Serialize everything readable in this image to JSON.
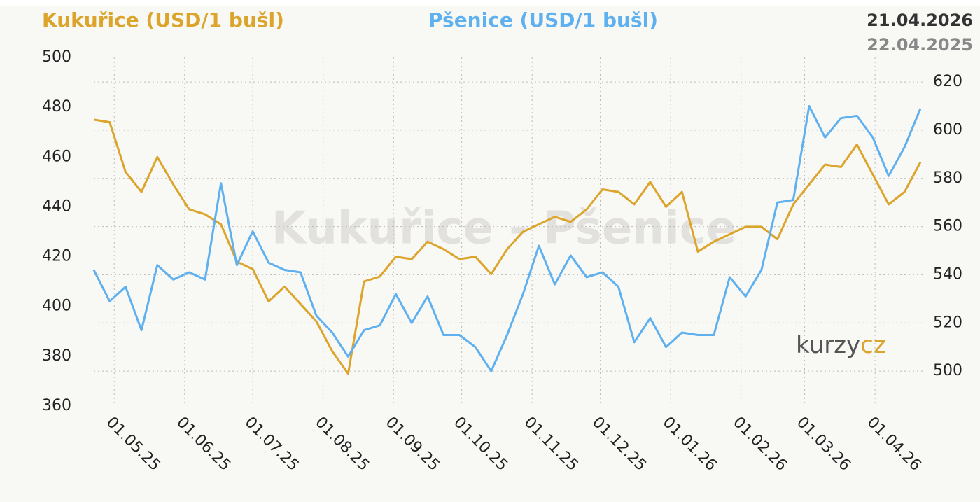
{
  "chart_data": {
    "type": "line",
    "date_labels": [
      "21.04.2026",
      "22.04.2025"
    ],
    "watermark": "Kukuřice - Pšenice",
    "logo": [
      "kurzy",
      "cz"
    ],
    "x": [
      "22.04.25",
      "29.04.25",
      "06.05.25",
      "13.05.25",
      "20.05.25",
      "27.05.25",
      "03.06.25",
      "10.06.25",
      "17.06.25",
      "24.06.25",
      "01.07.25",
      "08.07.25",
      "15.07.25",
      "22.07.25",
      "29.07.25",
      "05.08.25",
      "12.08.25",
      "19.08.25",
      "26.08.25",
      "02.09.25",
      "09.09.25",
      "16.09.25",
      "23.09.25",
      "30.09.25",
      "07.10.25",
      "14.10.25",
      "21.10.25",
      "28.10.25",
      "04.11.25",
      "11.11.25",
      "18.11.25",
      "25.11.25",
      "02.12.25",
      "09.12.25",
      "16.12.25",
      "23.12.25",
      "30.12.25",
      "06.01.26",
      "13.01.26",
      "20.01.26",
      "27.01.26",
      "03.02.26",
      "10.02.26",
      "17.02.26",
      "24.02.26",
      "03.03.26",
      "10.03.26",
      "17.03.26",
      "24.03.26",
      "31.03.26",
      "07.04.26",
      "14.04.26",
      "21.04.26"
    ],
    "series": [
      {
        "name": "Kukuřice (USD/1 bušl)",
        "color": "#dca42a",
        "values": [
          475,
          474,
          454,
          446,
          460,
          449,
          439,
          437,
          433,
          418,
          415,
          402,
          408,
          401,
          394,
          382,
          373,
          410,
          412,
          420,
          419,
          426,
          423,
          419,
          420,
          413,
          423,
          430,
          433,
          436,
          434,
          439,
          447,
          446,
          441,
          450,
          440,
          446,
          422,
          426,
          429,
          432,
          432,
          427,
          441,
          449,
          457,
          456,
          465,
          453,
          441,
          446,
          458
        ]
      },
      {
        "name": "Pšenice (USD/1 bušl)",
        "color": "#5fb0ef",
        "axis": "y2",
        "values": [
          542,
          529,
          535,
          517,
          544,
          538,
          541,
          538,
          578,
          544,
          558,
          545,
          542,
          541,
          523,
          516,
          506,
          517,
          519,
          532,
          520,
          531,
          515,
          515,
          510,
          500,
          515,
          532,
          552,
          536,
          548,
          539,
          541,
          535,
          512,
          522,
          510,
          516,
          515,
          515,
          539,
          531,
          542,
          570,
          571,
          610,
          597,
          605,
          606,
          597,
          581,
          593,
          609
        ]
      }
    ],
    "xlim": [
      "22.04.25",
      "21.04.26"
    ],
    "xticks": [
      "01.05.25",
      "01.06.25",
      "01.07.25",
      "01.08.25",
      "01.09.25",
      "01.10.25",
      "01.11.25",
      "01.12.25",
      "01.01.26",
      "01.02.26",
      "01.03.26",
      "01.04.26"
    ],
    "ylim": [
      360,
      500
    ],
    "yticks": [
      360,
      380,
      400,
      420,
      440,
      460,
      480,
      500
    ],
    "y2lim": [
      485.5,
      630.2
    ],
    "y2ticks": [
      500,
      520,
      540,
      560,
      580,
      600,
      620
    ],
    "grid": true
  }
}
